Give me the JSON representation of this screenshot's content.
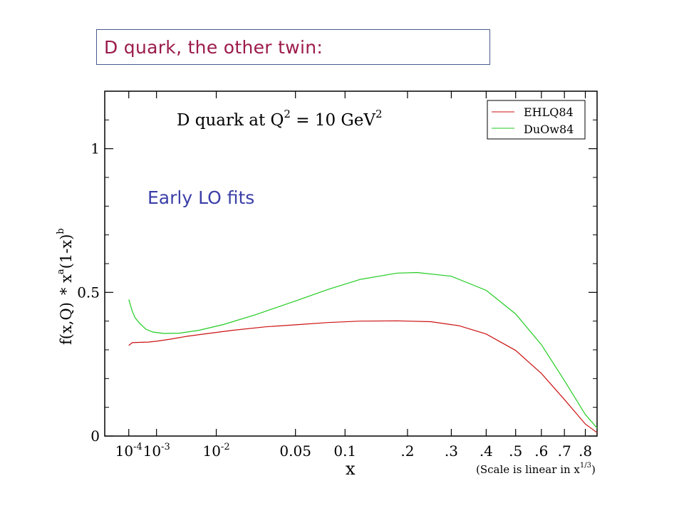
{
  "slide": {
    "heading": "D quark, the other twin:",
    "annotation": "Early LO fits",
    "annotation_color": "#3b3fa8",
    "heading_color": "#9b1b4b"
  },
  "chart_data": {
    "type": "line",
    "title": {
      "main": "D quark at Q",
      "exp1": "2",
      "mid": " = 10 GeV",
      "exp2": "2"
    },
    "ylabel": {
      "part1": "f(x,Q)",
      "part2": "* x",
      "exp_a": "a",
      "part3": "(1-x)",
      "exp_b": "b"
    },
    "xlabel": "x",
    "x_scale_note": {
      "before": "(Scale is linear in x",
      "exp": "1/3",
      "after": ")"
    },
    "ylim": [
      0,
      1.2
    ],
    "xlim_x13": [
      0.0,
      0.951
    ],
    "y_ticks": [
      {
        "value": 0,
        "label": "0"
      },
      {
        "value": 0.5,
        "label": "0.5"
      },
      {
        "value": 1,
        "label": "1"
      }
    ],
    "x_ticks": [
      {
        "value": 0.0001,
        "label": "10",
        "exp": "-4"
      },
      {
        "value": 0.001,
        "label": "10",
        "exp": "-3"
      },
      {
        "value": 0.01,
        "label": "10",
        "exp": "-2"
      },
      {
        "value": 0.05,
        "label": "0.05"
      },
      {
        "value": 0.1,
        "label": "0.1"
      },
      {
        "value": 0.2,
        "label": ".2"
      },
      {
        "value": 0.3,
        "label": ".3"
      },
      {
        "value": 0.4,
        "label": ".4"
      },
      {
        "value": 0.5,
        "label": ".5"
      },
      {
        "value": 0.6,
        "label": ".6"
      },
      {
        "value": 0.7,
        "label": ".7"
      },
      {
        "value": 0.8,
        "label": ".8"
      }
    ],
    "legend_position": "top-right",
    "series": [
      {
        "name": "EHLQ84",
        "color": "#cc1111",
        "points": [
          [
            0.0001,
            0.315
          ],
          [
            0.00015,
            0.325
          ],
          [
            0.0003,
            0.326
          ],
          [
            0.0006,
            0.327
          ],
          [
            0.001,
            0.33
          ],
          [
            0.002,
            0.337
          ],
          [
            0.004,
            0.347
          ],
          [
            0.008,
            0.357
          ],
          [
            0.015,
            0.368
          ],
          [
            0.03,
            0.38
          ],
          [
            0.05,
            0.387
          ],
          [
            0.08,
            0.395
          ],
          [
            0.12,
            0.4
          ],
          [
            0.18,
            0.401
          ],
          [
            0.25,
            0.398
          ],
          [
            0.32,
            0.384
          ],
          [
            0.4,
            0.355
          ],
          [
            0.5,
            0.298
          ],
          [
            0.6,
            0.218
          ],
          [
            0.7,
            0.127
          ],
          [
            0.8,
            0.042
          ],
          [
            0.86,
            0.012
          ]
        ]
      },
      {
        "name": "DuOw84",
        "color": "#22cc22",
        "points": [
          [
            0.0001,
            0.475
          ],
          [
            0.00015,
            0.435
          ],
          [
            0.0002,
            0.412
          ],
          [
            0.0003,
            0.393
          ],
          [
            0.0005,
            0.372
          ],
          [
            0.0008,
            0.362
          ],
          [
            0.0015,
            0.357
          ],
          [
            0.003,
            0.358
          ],
          [
            0.006,
            0.368
          ],
          [
            0.012,
            0.388
          ],
          [
            0.025,
            0.423
          ],
          [
            0.05,
            0.47
          ],
          [
            0.08,
            0.51
          ],
          [
            0.12,
            0.545
          ],
          [
            0.18,
            0.567
          ],
          [
            0.22,
            0.569
          ],
          [
            0.3,
            0.556
          ],
          [
            0.4,
            0.507
          ],
          [
            0.5,
            0.425
          ],
          [
            0.6,
            0.318
          ],
          [
            0.7,
            0.193
          ],
          [
            0.8,
            0.075
          ],
          [
            0.86,
            0.028
          ]
        ]
      }
    ]
  }
}
